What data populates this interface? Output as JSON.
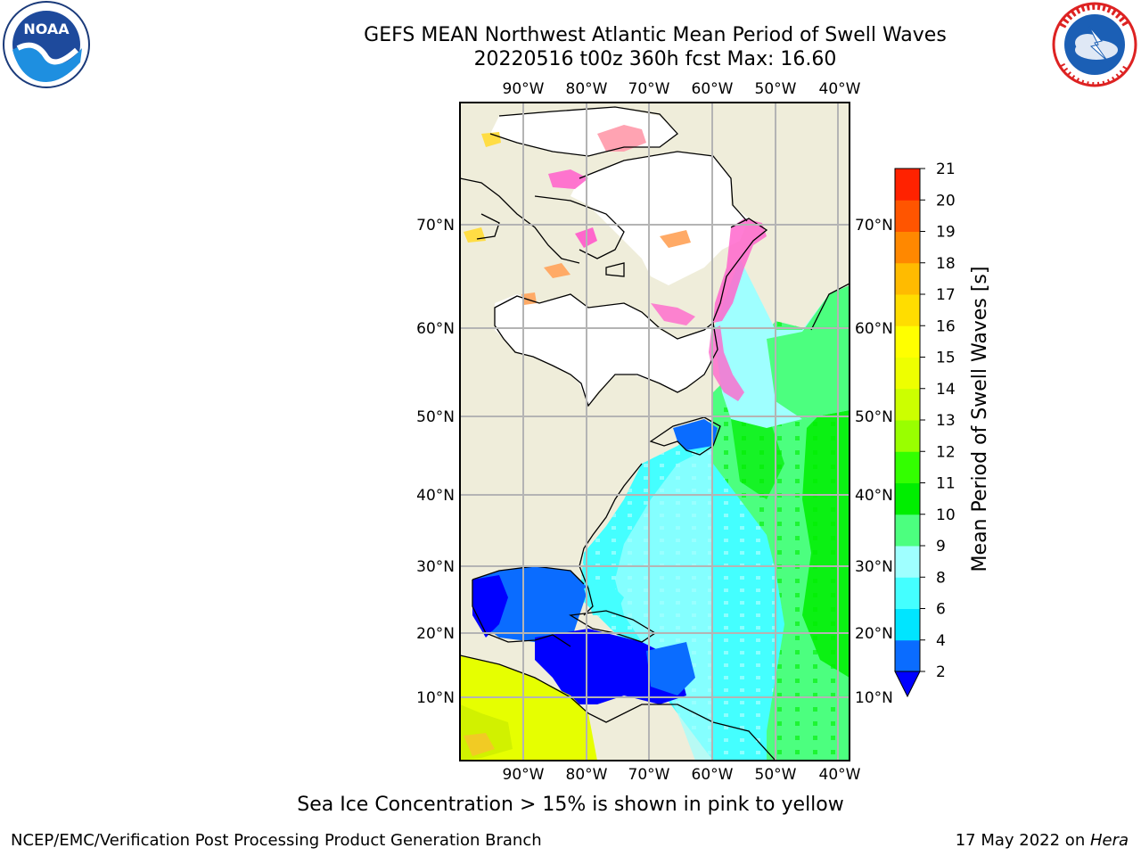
{
  "header": {
    "title_line1": "GEFS MEAN Northwest Atlantic Mean Period of Swell Waves",
    "title_line2": "20220516 t00z 360h fcst   Max: 16.60"
  },
  "logos": {
    "left": "noaa-logo",
    "left_text": "NOAA",
    "right": "nws-logo"
  },
  "map": {
    "lon_labels": [
      "90°W",
      "80°W",
      "70°W",
      "60°W",
      "50°W",
      "40°W"
    ],
    "lat_labels": [
      "70°N",
      "60°N",
      "50°N",
      "40°N",
      "30°N",
      "20°N",
      "10°N"
    ],
    "land_color": "#efedda",
    "ice_color": "#ff66cc"
  },
  "colorbar": {
    "label": "Mean Period of Swell Waves [s]",
    "ticks": [
      "2",
      "4",
      "6",
      "8",
      "9",
      "10",
      "11",
      "12",
      "13",
      "14",
      "15",
      "16",
      "17",
      "18",
      "19",
      "20",
      "21"
    ],
    "colors": [
      "#0a6cff",
      "#00e5ff",
      "#44ffff",
      "#9fffff",
      "#4cff7f",
      "#00ee00",
      "#33ff00",
      "#99ff00",
      "#ccff00",
      "#eeff00",
      "#ffff00",
      "#ffdd00",
      "#ffbb00",
      "#ff8800",
      "#ff5500",
      "#ff2200"
    ],
    "under_color": "#0000ff"
  },
  "caption": "Sea Ice Concentration > 15% is shown in pink to yellow",
  "footer": {
    "left": "NCEP/EMC/Verification Post Processing Product Generation Branch",
    "date": "17 May 2022 on ",
    "host": "Hera"
  }
}
